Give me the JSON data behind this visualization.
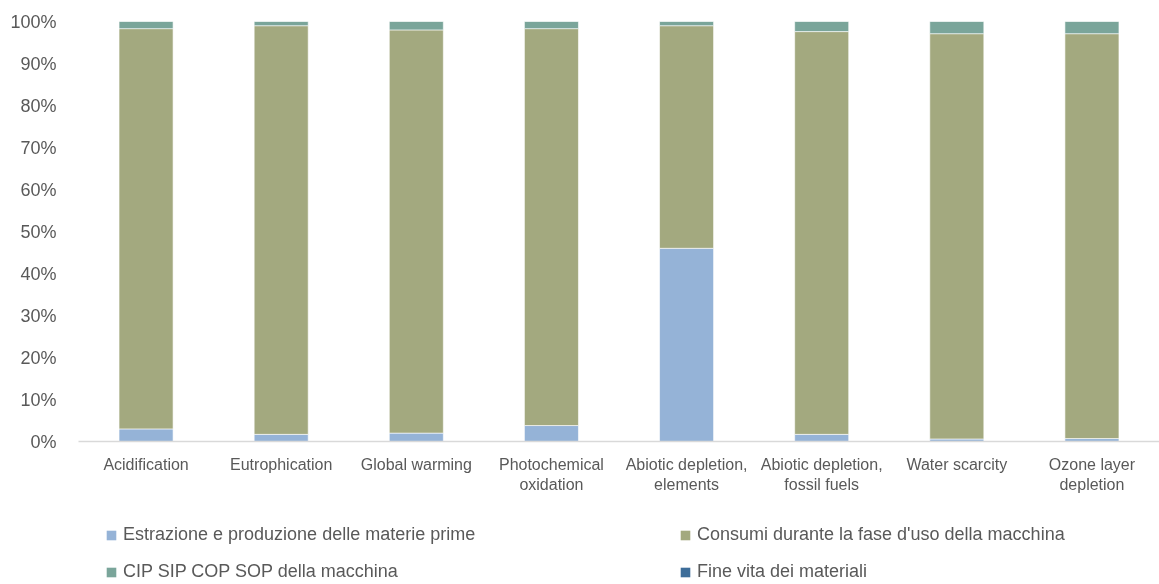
{
  "chart_data": {
    "type": "bar",
    "stacked": true,
    "categories": [
      "Acidification",
      "Eutrophication",
      "Global warming",
      "Photochemical oxidation",
      "Abiotic depletion, elements",
      "Abiotic depletion, fossil fuels",
      "Water scarcity",
      "Ozone layer depletion"
    ],
    "series": [
      {
        "name": "Estrazione e produzione delle materie prime",
        "color": "#95b3d7",
        "values": [
          3.0,
          1.7,
          2.0,
          3.8,
          46.0,
          1.7,
          0.6,
          0.7
        ]
      },
      {
        "name": "Consumi durante la fase d'uso della macchina",
        "color": "#a3a97f",
        "values": [
          95.3,
          97.3,
          96.0,
          94.5,
          53.0,
          95.9,
          96.5,
          96.4
        ]
      },
      {
        "name": "CIP SIP COP SOP della macchina",
        "color": "#7aa59a",
        "values": [
          1.7,
          1.0,
          2.0,
          1.7,
          1.0,
          2.4,
          2.9,
          2.9
        ]
      },
      {
        "name": "Fine vita dei materiali",
        "color": "#3d6d99",
        "values": [
          null,
          null,
          null,
          null,
          null,
          null,
          null,
          null
        ]
      }
    ],
    "ylim": [
      0,
      100
    ],
    "yticks": [
      {
        "value": 0,
        "label": "0%"
      },
      {
        "value": 10,
        "label": "10%"
      },
      {
        "value": 20,
        "label": "20%"
      },
      {
        "value": 30,
        "label": "30%"
      },
      {
        "value": 40,
        "label": "40%"
      },
      {
        "value": 50,
        "label": "50%"
      },
      {
        "value": 60,
        "label": "60%"
      },
      {
        "value": 70,
        "label": "70%"
      },
      {
        "value": 80,
        "label": "80%"
      },
      {
        "value": 90,
        "label": "90%"
      },
      {
        "value": 100,
        "label": "100%"
      }
    ],
    "grid": false,
    "legend": "bottom"
  }
}
